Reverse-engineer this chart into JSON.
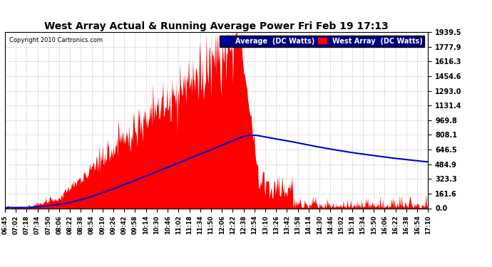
{
  "title": "West Array Actual & Running Average Power Fri Feb 19 17:13",
  "copyright": "Copyright 2010 Cartronics.com",
  "legend_avg": "Average  (DC Watts)",
  "legend_west": "West Array  (DC Watts)",
  "ymax": 1939.5,
  "ymin": 0.0,
  "yticks": [
    0.0,
    161.6,
    323.3,
    484.9,
    646.5,
    808.1,
    969.8,
    1131.4,
    1293.0,
    1454.6,
    1616.3,
    1777.9,
    1939.5
  ],
  "bg_color": "#ffffff",
  "plot_bg_color": "#ffffff",
  "grid_color": "#bbbbbb",
  "bar_color": "#ff0000",
  "avg_line_color": "#0000cc",
  "title_color": "#000000",
  "xtick_labels": [
    "06:45",
    "07:02",
    "07:18",
    "07:34",
    "07:50",
    "08:06",
    "08:22",
    "08:38",
    "08:54",
    "09:10",
    "09:26",
    "09:42",
    "09:58",
    "10:14",
    "10:30",
    "10:46",
    "11:02",
    "11:18",
    "11:34",
    "11:50",
    "12:06",
    "12:22",
    "12:38",
    "12:54",
    "13:10",
    "13:26",
    "13:42",
    "13:58",
    "14:14",
    "14:30",
    "14:46",
    "15:02",
    "15:18",
    "15:34",
    "15:50",
    "16:06",
    "16:22",
    "16:38",
    "16:54",
    "17:10"
  ]
}
